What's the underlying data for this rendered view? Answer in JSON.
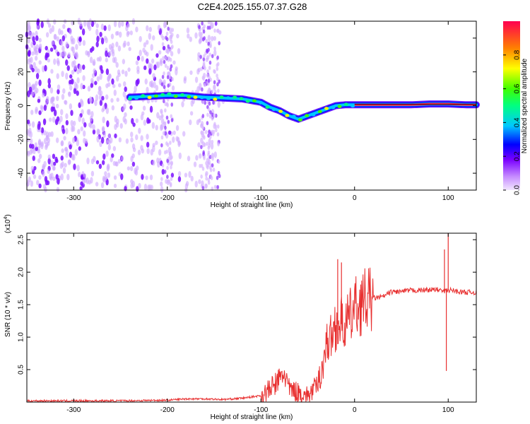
{
  "title": "C2E4.2025.155.07.37.G28",
  "chart_data": [
    {
      "type": "heatmap",
      "xlabel": "Height of straight line (km)",
      "ylabel": "Frequency (Hz)",
      "xlim": [
        -350,
        130
      ],
      "ylim": [
        -50,
        50
      ],
      "xticks": [
        -300,
        -200,
        -100,
        0,
        100
      ],
      "yticks": [
        -40,
        -20,
        0,
        20,
        40
      ],
      "colorbar": {
        "label": "Normalized spectral amplitude",
        "range": [
          0,
          1
        ],
        "ticks": [
          "0.0",
          "0.2",
          "0.4",
          "0.6",
          "0.8"
        ],
        "tick_values": [
          0,
          0.2,
          0.4,
          0.6,
          0.8
        ]
      },
      "ridge": {
        "x": [
          -240,
          -220,
          -200,
          -180,
          -160,
          -140,
          -120,
          -100,
          -90,
          -80,
          -70,
          -60,
          -50,
          -40,
          -30,
          -20,
          -10,
          0,
          20,
          40,
          60,
          80,
          100,
          120,
          130
        ],
        "y": [
          5,
          5.5,
          6,
          6,
          5,
          4.5,
          4,
          2,
          -1,
          -3,
          -6,
          -8,
          -6,
          -4,
          -2,
          0,
          0.5,
          0.5,
          0.5,
          0.5,
          0.5,
          1,
          1,
          0.5,
          0.5
        ]
      },
      "noise_region": [
        -350,
        -140
      ]
    },
    {
      "type": "line",
      "xlabel": "Height of straight line (km)",
      "ylabel": "SNR (10 * v/v)",
      "yscale_label": "(x10",
      "yscale_exp": "4",
      "xlim": [
        -350,
        130
      ],
      "ylim": [
        0,
        2.6
      ],
      "xticks": [
        -300,
        -200,
        -100,
        0,
        100
      ],
      "yticks": [
        0.5,
        1.0,
        1.5,
        2.0,
        2.5
      ],
      "ytick_labels": [
        "0.5",
        "1.0",
        "1.5",
        "2.0",
        "2.5"
      ],
      "color": "#e83030",
      "series": [
        {
          "x": [
            -350,
            -300,
            -250,
            -200,
            -180,
            -160,
            -140,
            -120,
            -100,
            -90,
            -80,
            -75,
            -70,
            -60,
            -50,
            -40,
            -35,
            -30,
            -25,
            -20,
            -15,
            -10,
            -5,
            0,
            10,
            20,
            30,
            40,
            50,
            60,
            70,
            80,
            90,
            95,
            100,
            105,
            110,
            120,
            130
          ],
          "y": [
            0.02,
            0.02,
            0.02,
            0.03,
            0.05,
            0.05,
            0.04,
            0.06,
            0.1,
            0.2,
            0.35,
            0.45,
            0.2,
            0.15,
            0.1,
            0.25,
            0.5,
            0.9,
            1.0,
            1.2,
            1.2,
            1.2,
            1.3,
            1.45,
            1.55,
            1.6,
            1.62,
            1.7,
            1.7,
            1.72,
            1.72,
            1.73,
            1.73,
            1.7,
            1.72,
            1.72,
            1.7,
            1.69,
            1.69
          ]
        }
      ],
      "spikes": [
        {
          "x": -18,
          "y": 2.2
        },
        {
          "x": -14,
          "y": 2.15
        },
        {
          "x": 96,
          "y": 2.35
        },
        {
          "x": 100,
          "y": 2.6
        },
        {
          "x": 98,
          "y": 0.48
        }
      ]
    }
  ]
}
